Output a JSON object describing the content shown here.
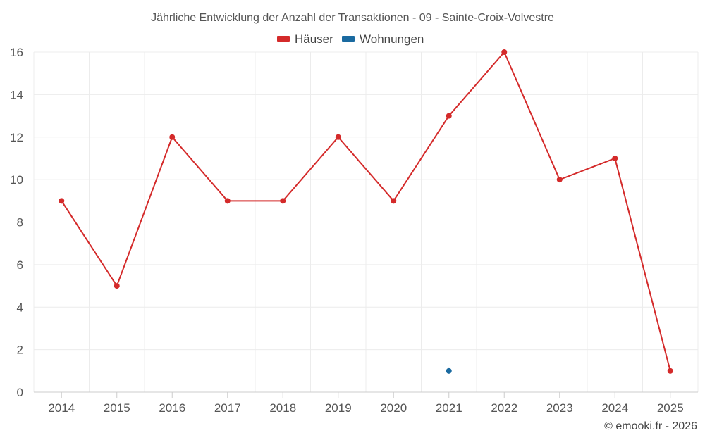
{
  "chart_data": {
    "type": "line",
    "title": "Jährliche Entwicklung der Anzahl der Transaktionen - 09 - Sainte-Croix-Volvestre",
    "categories": [
      "2014",
      "2015",
      "2016",
      "2017",
      "2018",
      "2019",
      "2020",
      "2021",
      "2022",
      "2023",
      "2024",
      "2025"
    ],
    "series": [
      {
        "name": "Häuser",
        "color": "#d42a2a",
        "values": [
          9,
          5,
          12,
          9,
          9,
          12,
          9,
          13,
          16,
          10,
          11,
          1
        ]
      },
      {
        "name": "Wohnungen",
        "color": "#1a6aa0",
        "values": [
          null,
          null,
          null,
          null,
          null,
          null,
          null,
          1,
          null,
          null,
          null,
          null
        ]
      }
    ],
    "y_ticks": [
      "0",
      "2",
      "4",
      "6",
      "8",
      "10",
      "12",
      "14",
      "16"
    ],
    "ylim": [
      0,
      16
    ],
    "xlabel": "",
    "ylabel": "",
    "grid": true,
    "legend_position": "top-center"
  },
  "credit": "© emooki.fr - 2026"
}
